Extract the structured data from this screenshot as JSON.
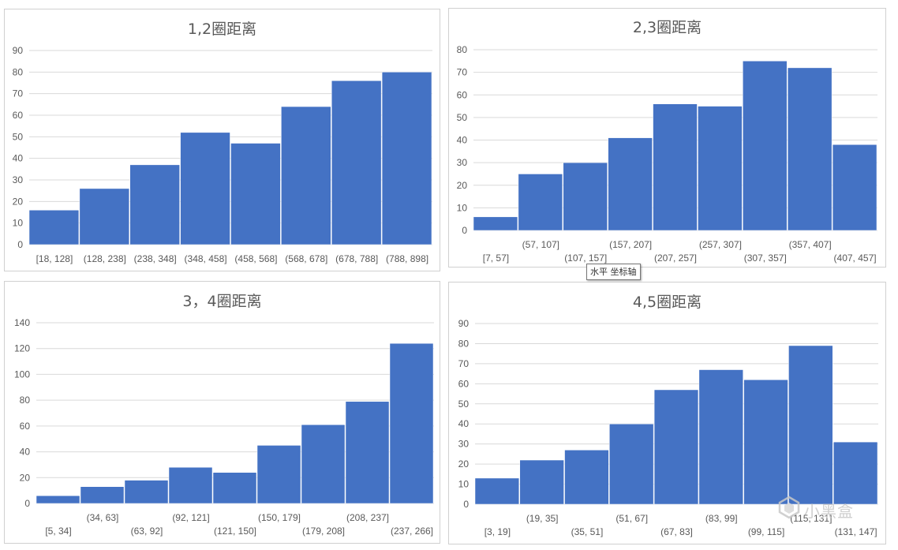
{
  "colors": {
    "bar": "#4472c4",
    "grid": "#d9d9d9",
    "tick_text": "#595959",
    "title_text": "#595959"
  },
  "tooltip": {
    "text": "水平 坐标轴"
  },
  "watermark": {
    "text": "小黑盒",
    "icon": "heybox-logo-icon"
  },
  "chart_data": [
    {
      "type": "bar",
      "title": "1,2圈距离",
      "categories": [
        "[18, 128]",
        "(128, 238]",
        "(238, 348]",
        "(348, 458]",
        "(458, 568]",
        "(568, 678]",
        "(678, 788]",
        "(788, 898]"
      ],
      "values": [
        16,
        26,
        37,
        52,
        47,
        64,
        76,
        80
      ],
      "ylim": [
        0,
        90
      ],
      "yticks": [
        0,
        10,
        20,
        30,
        40,
        50,
        60,
        70,
        80,
        90
      ],
      "grid": true,
      "label_rows": 1
    },
    {
      "type": "bar",
      "title": "2,3圈距离",
      "categories": [
        "[7, 57]",
        "(57, 107]",
        "(107, 157]",
        "(157, 207]",
        "(207, 257]",
        "(257, 307]",
        "(307, 357]",
        "(357, 407]",
        "(407, 457]"
      ],
      "values": [
        6,
        25,
        30,
        41,
        56,
        55,
        75,
        72,
        38
      ],
      "ylim": [
        0,
        80
      ],
      "yticks": [
        0,
        10,
        20,
        30,
        40,
        50,
        60,
        70,
        80
      ],
      "grid": true,
      "label_rows": 2
    },
    {
      "type": "bar",
      "title": "3，4圈距离",
      "categories": [
        "[5, 34]",
        "(34, 63]",
        "(63, 92]",
        "(92, 121]",
        "(121, 150]",
        "(150, 179]",
        "(179, 208]",
        "(208, 237]",
        "(237, 266]"
      ],
      "values": [
        6,
        13,
        18,
        28,
        24,
        45,
        61,
        79,
        124
      ],
      "ylim": [
        0,
        140
      ],
      "yticks": [
        0,
        20,
        40,
        60,
        80,
        100,
        120,
        140
      ],
      "grid": true,
      "label_rows": 2
    },
    {
      "type": "bar",
      "title": "4,5圈距离",
      "categories": [
        "[3, 19]",
        "(19, 35]",
        "(35, 51]",
        "(51, 67]",
        "(67, 83]",
        "(83, 99]",
        "(99, 115]",
        "(115, 131]",
        "(131, 147]"
      ],
      "values": [
        13,
        22,
        27,
        40,
        57,
        67,
        62,
        79,
        31
      ],
      "ylim": [
        0,
        90
      ],
      "yticks": [
        0,
        10,
        20,
        30,
        40,
        50,
        60,
        70,
        80,
        90
      ],
      "grid": true,
      "label_rows": 2
    }
  ]
}
